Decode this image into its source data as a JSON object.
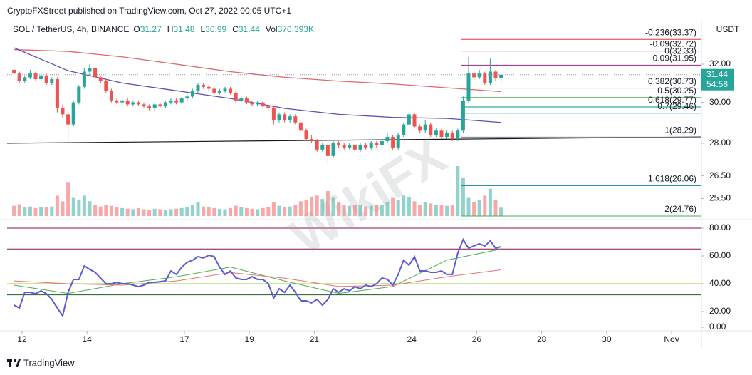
{
  "header": {
    "publisher": "CryptoFXStreet published on TradingView.com, Oct 27, 2022 00:05 UTC+1"
  },
  "chart_data": {
    "type": "candlestick",
    "symbol": "SOL / TetherUS, 4h, BINANCE",
    "ohlc_legend": [
      {
        "label": "O",
        "value": 31.27
      },
      {
        "label": "H",
        "value": 31.48
      },
      {
        "label": "L",
        "value": 30.99
      },
      {
        "label": "C",
        "value": 31.44
      },
      {
        "label": "Vol",
        "value": "370.393K"
      }
    ],
    "currency": "USDT",
    "log_scale": true,
    "up_color": "#26a69a",
    "down_color": "#ef5350",
    "ylim": [
      24.7,
      34.4
    ],
    "yticks": [
      {
        "value": 32,
        "label": "32.00"
      },
      {
        "value": 30,
        "label": "30.00"
      },
      {
        "value": 28,
        "label": "28.00"
      },
      {
        "value": 26.5,
        "label": "26.50"
      },
      {
        "value": 25.5,
        "label": "25.50"
      }
    ],
    "xlim": [
      11.54,
      32.92
    ],
    "xticks": [
      12,
      14,
      17,
      19,
      21,
      24,
      26,
      28,
      30,
      {
        "value": 32,
        "label": "Nov"
      }
    ],
    "ohlc": [
      [
        31.7,
        31.9,
        31.4,
        31.5
      ],
      [
        31.5,
        31.6,
        31.0,
        31.1
      ],
      [
        31.1,
        31.4,
        31.0,
        31.3
      ],
      [
        31.3,
        31.7,
        31.2,
        31.5
      ],
      [
        31.5,
        31.6,
        31.1,
        31.2
      ],
      [
        31.2,
        31.5,
        31.1,
        31.4
      ],
      [
        31.4,
        31.5,
        30.9,
        31.0
      ],
      [
        31.0,
        31.3,
        30.9,
        31.2
      ],
      [
        31.2,
        31.3,
        29.5,
        29.7
      ],
      [
        29.7,
        29.9,
        29.2,
        29.4
      ],
      [
        29.4,
        29.6,
        28.0,
        28.9
      ],
      [
        28.9,
        30.1,
        28.8,
        30.0
      ],
      [
        30.0,
        30.9,
        29.9,
        30.8
      ],
      [
        30.8,
        31.8,
        30.7,
        31.6
      ],
      [
        31.6,
        32.0,
        31.4,
        31.8
      ],
      [
        31.8,
        31.9,
        31.2,
        31.3
      ],
      [
        31.3,
        31.4,
        31.0,
        31.1
      ],
      [
        31.1,
        31.2,
        30.5,
        30.6
      ],
      [
        30.6,
        30.7,
        30.0,
        30.1
      ],
      [
        30.1,
        30.2,
        29.9,
        30.0
      ],
      [
        30.0,
        30.2,
        29.9,
        30.1
      ],
      [
        30.1,
        30.2,
        29.8,
        29.9
      ],
      [
        29.9,
        30.1,
        29.8,
        30.0
      ],
      [
        30.0,
        30.1,
        29.8,
        29.9
      ],
      [
        29.9,
        30.0,
        29.7,
        29.8
      ],
      [
        29.8,
        29.9,
        29.6,
        29.7
      ],
      [
        29.7,
        30.0,
        29.6,
        29.9
      ],
      [
        29.9,
        30.0,
        29.7,
        29.8
      ],
      [
        29.8,
        30.1,
        29.7,
        30.0
      ],
      [
        30.0,
        30.2,
        29.9,
        30.1
      ],
      [
        30.1,
        30.2,
        29.9,
        30.0
      ],
      [
        30.0,
        30.3,
        29.9,
        30.2
      ],
      [
        30.2,
        30.4,
        30.1,
        30.3
      ],
      [
        30.3,
        30.7,
        30.2,
        30.6
      ],
      [
        30.6,
        31.0,
        30.5,
        30.9
      ],
      [
        30.9,
        31.0,
        30.7,
        30.8
      ],
      [
        30.8,
        30.9,
        30.6,
        30.7
      ],
      [
        30.7,
        30.8,
        30.4,
        30.5
      ],
      [
        30.5,
        30.7,
        30.4,
        30.6
      ],
      [
        30.6,
        30.8,
        30.5,
        30.7
      ],
      [
        30.7,
        30.8,
        30.4,
        30.5
      ],
      [
        30.5,
        30.6,
        30.0,
        30.1
      ],
      [
        30.1,
        30.3,
        30.0,
        30.2
      ],
      [
        30.2,
        30.3,
        29.9,
        30.0
      ],
      [
        30.0,
        30.1,
        29.8,
        29.9
      ],
      [
        29.9,
        30.1,
        29.8,
        30.0
      ],
      [
        30.0,
        30.1,
        29.7,
        29.8
      ],
      [
        29.8,
        29.9,
        29.6,
        29.7
      ],
      [
        29.7,
        29.8,
        28.9,
        29.1
      ],
      [
        29.1,
        29.5,
        29.0,
        29.4
      ],
      [
        29.4,
        29.5,
        29.0,
        29.1
      ],
      [
        29.1,
        29.4,
        29.0,
        29.3
      ],
      [
        29.3,
        29.4,
        28.9,
        29.0
      ],
      [
        29.0,
        29.1,
        28.5,
        28.6
      ],
      [
        28.6,
        28.7,
        28.1,
        28.2
      ],
      [
        28.2,
        28.4,
        28.0,
        28.1
      ],
      [
        28.1,
        28.2,
        27.6,
        27.7
      ],
      [
        27.7,
        28.0,
        27.6,
        27.9
      ],
      [
        27.9,
        28.0,
        27.1,
        27.4
      ],
      [
        27.4,
        28.1,
        27.3,
        28.0
      ],
      [
        28.0,
        28.1,
        27.8,
        27.9
      ],
      [
        27.9,
        28.0,
        27.7,
        27.8
      ],
      [
        27.8,
        28.0,
        27.7,
        27.9
      ],
      [
        27.9,
        28.0,
        27.6,
        27.7
      ],
      [
        27.7,
        28.0,
        27.6,
        27.9
      ],
      [
        27.9,
        28.0,
        27.7,
        27.8
      ],
      [
        27.8,
        28.1,
        27.7,
        28.0
      ],
      [
        28.0,
        28.1,
        27.8,
        27.9
      ],
      [
        27.9,
        28.2,
        27.8,
        28.1
      ],
      [
        28.1,
        28.5,
        28.0,
        28.3
      ],
      [
        28.3,
        28.4,
        27.7,
        27.8
      ],
      [
        27.8,
        28.5,
        27.7,
        28.4
      ],
      [
        28.4,
        29.0,
        28.3,
        28.9
      ],
      [
        28.9,
        29.6,
        28.8,
        29.4
      ],
      [
        29.4,
        29.5,
        28.7,
        28.8
      ],
      [
        28.8,
        28.9,
        28.5,
        28.6
      ],
      [
        28.6,
        29.1,
        28.5,
        28.9
      ],
      [
        28.9,
        29.0,
        28.3,
        28.4
      ],
      [
        28.4,
        28.7,
        28.3,
        28.6
      ],
      [
        28.6,
        28.7,
        28.2,
        28.3
      ],
      [
        28.3,
        28.6,
        28.2,
        28.5
      ],
      [
        28.5,
        28.6,
        28.1,
        28.2
      ],
      [
        28.2,
        28.7,
        28.1,
        28.6
      ],
      [
        28.6,
        30.3,
        28.5,
        30.1
      ],
      [
        30.1,
        32.4,
        30.0,
        31.5
      ],
      [
        31.5,
        31.7,
        31.1,
        31.3
      ],
      [
        31.3,
        31.7,
        31.2,
        31.5
      ],
      [
        31.5,
        31.6,
        30.9,
        31.0
      ],
      [
        31.0,
        32.3,
        30.9,
        31.6
      ],
      [
        31.6,
        31.7,
        31.1,
        31.27
      ],
      [
        31.27,
        31.48,
        30.99,
        31.44
      ]
    ],
    "volume": [
      450,
      520,
      380,
      420,
      350,
      400,
      380,
      420,
      900,
      650,
      1500,
      800,
      700,
      900,
      650,
      480,
      420,
      500,
      450,
      380,
      350,
      320,
      300,
      350,
      300,
      280,
      320,
      300,
      280,
      300,
      320,
      350,
      380,
      500,
      600,
      420,
      380,
      350,
      320,
      300,
      350,
      450,
      380,
      350,
      320,
      300,
      350,
      380,
      600,
      450,
      400,
      420,
      500,
      650,
      700,
      850,
      900,
      750,
      1100,
      800,
      600,
      500,
      450,
      480,
      500,
      420,
      450,
      480,
      500,
      600,
      800,
      700,
      900,
      850,
      650,
      500,
      600,
      550,
      480,
      500,
      450,
      500,
      2200,
      1700,
      800,
      600,
      700,
      900,
      1200,
      700,
      370.393
    ],
    "ma_lines": [
      {
        "color": "#e0676e",
        "x": [
          0,
          10,
          20,
          30,
          40,
          50,
          60,
          70,
          80,
          90
        ],
        "values": [
          32.8,
          32.7,
          32.4,
          32.0,
          31.6,
          31.3,
          31.1,
          30.95,
          30.75,
          30.55
        ]
      },
      {
        "color": "#5c4fb3",
        "x": [
          0,
          10,
          20,
          30,
          40,
          50,
          60,
          70,
          80,
          90
        ],
        "values": [
          32.9,
          31.65,
          31.0,
          30.6,
          30.2,
          29.7,
          29.4,
          29.25,
          29.2,
          29.0
        ]
      }
    ],
    "trendline": {
      "color": "#131722",
      "values": [
        28.0,
        28.3
      ]
    },
    "fib_levels": [
      {
        "label": "-0.236(33.37)",
        "value": 33.37,
        "color": "#e53935"
      },
      {
        "label": "-0.09(32.72)",
        "value": 32.72,
        "color": "#c62828"
      },
      {
        "label": "0(32.33)",
        "value": 32.33,
        "color": "#787b86"
      },
      {
        "label": "0.09(31.95)",
        "value": 31.95,
        "color": "#9c2780"
      },
      {
        "label": "0.382(30.73)",
        "value": 30.73,
        "color": "#81c784"
      },
      {
        "label": "0.5(30.25)",
        "value": 30.25,
        "color": "#4caf50"
      },
      {
        "label": "0.618(29.77)",
        "value": 29.77,
        "color": "#009688"
      },
      {
        "label": "0.7(29.46)",
        "value": 29.46,
        "color": "#2b8cbe"
      },
      {
        "label": "1(28.29)",
        "value": 28.29,
        "color": "#787b86"
      },
      {
        "label": "1.618(26.06)",
        "value": 26.06,
        "color": "#2b8cbe"
      },
      {
        "label": "2(24.76)",
        "value": 24.76,
        "color": "#4caf50"
      }
    ],
    "last_price": {
      "value": 31.44,
      "countdown": "54:58",
      "color": "#26a69a"
    },
    "rsi": {
      "ylim": [
        7.2,
        85.1
      ],
      "yticks": [
        {
          "value": 80,
          "label": "80.00"
        },
        {
          "value": 60,
          "label": "60.00"
        },
        {
          "value": 40,
          "label": "40.00"
        },
        {
          "value": 20,
          "label": "20.00"
        },
        {
          "value": 0,
          "label": "0.00"
        }
      ],
      "levels": [
        {
          "value": 80,
          "color": "#880e4f"
        },
        {
          "value": 65,
          "color": "#880e4f"
        },
        {
          "value": 40,
          "color": "#9acd32"
        },
        {
          "value": 32,
          "color": "#1b5e20"
        }
      ],
      "color": "#5b5bd6",
      "values": [
        24.6,
        22.6,
        33.8,
        33.8,
        32.8,
        34.9,
        32.8,
        28.7,
        22.6,
        16.9,
        33.8,
        43.1,
        43.1,
        52.8,
        50.3,
        48.2,
        44.1,
        40,
        40,
        41,
        40,
        40,
        39,
        37.9,
        39,
        41,
        41,
        41.5,
        42,
        49.2,
        46.7,
        51.8,
        55.4,
        56.9,
        59.5,
        58.5,
        60.5,
        59.5,
        51.8,
        46.7,
        49.2,
        44.1,
        43.1,
        43.1,
        45.1,
        43.1,
        43.1,
        40,
        29.7,
        36.4,
        33.8,
        39,
        33.8,
        27.7,
        27.7,
        26.2,
        28.7,
        24.6,
        28.7,
        36.4,
        33.8,
        36.4,
        34.9,
        37.9,
        36.4,
        39,
        37.9,
        40,
        44.1,
        43.1,
        39,
        46.7,
        56.9,
        53.3,
        59.5,
        49.2,
        49.2,
        48.2,
        48.2,
        49.2,
        46.7,
        46.7,
        62,
        71.8,
        65.6,
        67.2,
        68.7,
        67.2,
        70.8,
        65.6,
        66.7
      ],
      "smooth_lines": [
        {
          "color": "#4caf50",
          "x": [
            0,
            10,
            20,
            30,
            40,
            50,
            60,
            70,
            80,
            90
          ],
          "values": [
            39,
            33,
            40,
            45,
            52,
            42,
            33,
            38,
            57,
            65
          ]
        },
        {
          "color": "#e57373",
          "x": [
            0,
            10,
            20,
            30,
            40,
            50,
            60,
            70,
            80,
            90
          ],
          "values": [
            42,
            40,
            39,
            42,
            48,
            44,
            38,
            39,
            45,
            50
          ]
        }
      ]
    }
  },
  "watermark": "WikiFX",
  "footer": "TradingView"
}
